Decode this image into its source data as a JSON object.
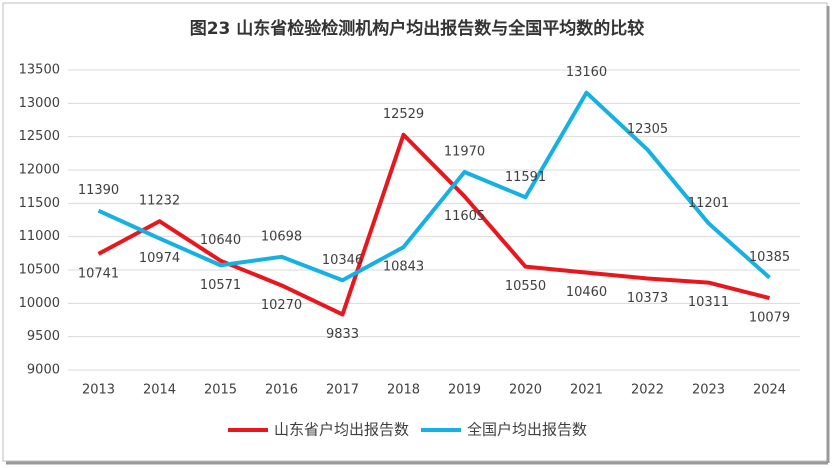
{
  "chart_data": {
    "type": "line",
    "title": "图23   山东省检验检测机构户均出报告数与全国平均数的比较",
    "categories": [
      "2013",
      "2014",
      "2015",
      "2016",
      "2017",
      "2018",
      "2019",
      "2020",
      "2021",
      "2022",
      "2023",
      "2024"
    ],
    "series": [
      {
        "name": "山东省户均出报告数",
        "color": "#e8171d",
        "values": [
          10741,
          11232,
          10640,
          10270,
          9833,
          12529,
          11605,
          10550,
          10460,
          10373,
          10311,
          10079
        ]
      },
      {
        "name": "全国户均出报告数",
        "color": "#16b0e2",
        "values": [
          11390,
          10974,
          10571,
          10698,
          10346,
          10843,
          11970,
          11591,
          13160,
          12305,
          11201,
          10385
        ]
      }
    ],
    "ylim": [
      9000,
      13500
    ],
    "yticks": [
      9000,
      9500,
      10000,
      10500,
      11000,
      11500,
      12000,
      12500,
      13000,
      13500
    ],
    "grid": true,
    "legend": "bottom"
  }
}
